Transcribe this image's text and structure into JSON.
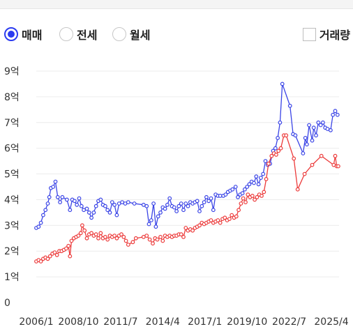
{
  "controls": {
    "options": [
      {
        "label": "매매",
        "selected": true
      },
      {
        "label": "전세",
        "selected": false
      },
      {
        "label": "월세",
        "selected": false
      }
    ],
    "volume_checkbox": {
      "label": "거래량",
      "checked": false
    }
  },
  "colors": {
    "accent": "#2b3bf0",
    "sale_line": "#3a44e6",
    "jeonse_line": "#ec3a3a",
    "grid": "#ececec"
  },
  "chart_data": {
    "type": "line",
    "ylim": [
      0,
      9
    ],
    "xlim": [
      2006.0,
      2025.75
    ],
    "y_ticks": [
      {
        "value": 0,
        "label": "0"
      },
      {
        "value": 1,
        "label": "1억"
      },
      {
        "value": 2,
        "label": "2억"
      },
      {
        "value": 3,
        "label": "3억"
      },
      {
        "value": 4,
        "label": "4억"
      },
      {
        "value": 5,
        "label": "5억"
      },
      {
        "value": 6,
        "label": "6억"
      },
      {
        "value": 7,
        "label": "7억"
      },
      {
        "value": 8,
        "label": "8억"
      },
      {
        "value": 9,
        "label": "9억"
      }
    ],
    "x_ticks": [
      {
        "value": 2006.0,
        "label": "2006/1"
      },
      {
        "value": 2008.75,
        "label": "2008/10"
      },
      {
        "value": 2011.5,
        "label": "2011/7"
      },
      {
        "value": 2014.25,
        "label": "2014/4"
      },
      {
        "value": 2017.0,
        "label": "2017/1"
      },
      {
        "value": 2019.75,
        "label": "2019/10"
      },
      {
        "value": 2022.5,
        "label": "2022/7"
      },
      {
        "value": 2025.25,
        "label": "2025/4"
      }
    ],
    "grid": true,
    "series": [
      {
        "id": "sale",
        "color": "#3a44e6",
        "points": [
          [
            2006.0,
            2.9
          ],
          [
            2006.15,
            2.95
          ],
          [
            2006.3,
            3.1
          ],
          [
            2006.45,
            3.4
          ],
          [
            2006.6,
            3.6
          ],
          [
            2006.75,
            3.85
          ],
          [
            2006.85,
            4.1
          ],
          [
            2006.95,
            4.45
          ],
          [
            2007.1,
            4.5
          ],
          [
            2007.25,
            4.7
          ],
          [
            2007.4,
            4.1
          ],
          [
            2007.55,
            3.9
          ],
          [
            2007.7,
            4.1
          ],
          [
            2008.0,
            4.0
          ],
          [
            2008.2,
            3.6
          ],
          [
            2008.35,
            4.0
          ],
          [
            2008.5,
            3.95
          ],
          [
            2008.65,
            3.8
          ],
          [
            2008.8,
            4.05
          ],
          [
            2008.95,
            3.75
          ],
          [
            2009.1,
            3.6
          ],
          [
            2009.3,
            3.65
          ],
          [
            2009.45,
            3.5
          ],
          [
            2009.6,
            3.3
          ],
          [
            2009.75,
            3.5
          ],
          [
            2009.9,
            3.75
          ],
          [
            2010.05,
            3.95
          ],
          [
            2010.2,
            4.0
          ],
          [
            2010.35,
            3.8
          ],
          [
            2010.5,
            3.75
          ],
          [
            2010.65,
            3.6
          ],
          [
            2010.8,
            3.5
          ],
          [
            2010.95,
            3.9
          ],
          [
            2011.1,
            3.8
          ],
          [
            2011.25,
            3.4
          ],
          [
            2011.4,
            3.85
          ],
          [
            2011.6,
            3.9
          ],
          [
            2011.8,
            3.85
          ],
          [
            2012.0,
            3.9
          ],
          [
            2012.4,
            3.85
          ],
          [
            2013.0,
            3.8
          ],
          [
            2013.2,
            3.75
          ],
          [
            2013.35,
            3.05
          ],
          [
            2013.5,
            3.2
          ],
          [
            2013.65,
            3.85
          ],
          [
            2013.8,
            2.95
          ],
          [
            2013.95,
            3.35
          ],
          [
            2014.1,
            3.5
          ],
          [
            2014.25,
            3.7
          ],
          [
            2014.4,
            3.65
          ],
          [
            2014.55,
            3.8
          ],
          [
            2014.7,
            4.05
          ],
          [
            2014.85,
            3.75
          ],
          [
            2015.0,
            3.7
          ],
          [
            2015.15,
            3.55
          ],
          [
            2015.3,
            3.75
          ],
          [
            2015.45,
            3.85
          ],
          [
            2015.6,
            3.6
          ],
          [
            2015.75,
            3.85
          ],
          [
            2015.9,
            3.75
          ],
          [
            2016.05,
            3.9
          ],
          [
            2016.2,
            3.85
          ],
          [
            2016.35,
            3.9
          ],
          [
            2016.5,
            3.95
          ],
          [
            2016.65,
            3.55
          ],
          [
            2016.8,
            3.75
          ],
          [
            2016.95,
            3.9
          ],
          [
            2017.1,
            4.1
          ],
          [
            2017.25,
            3.95
          ],
          [
            2017.4,
            4.05
          ],
          [
            2017.55,
            3.6
          ],
          [
            2017.7,
            4.2
          ],
          [
            2017.85,
            4.15
          ],
          [
            2018.0,
            4.15
          ],
          [
            2018.2,
            4.15
          ],
          [
            2018.35,
            4.2
          ],
          [
            2018.5,
            4.3
          ],
          [
            2018.65,
            4.35
          ],
          [
            2018.8,
            4.4
          ],
          [
            2019.0,
            4.5
          ],
          [
            2019.15,
            4.1
          ],
          [
            2019.3,
            4.2
          ],
          [
            2019.45,
            4.25
          ],
          [
            2019.6,
            4.4
          ],
          [
            2019.75,
            4.5
          ],
          [
            2019.9,
            4.6
          ],
          [
            2020.05,
            4.7
          ],
          [
            2020.2,
            4.65
          ],
          [
            2020.35,
            4.9
          ],
          [
            2020.5,
            4.6
          ],
          [
            2020.65,
            4.85
          ],
          [
            2020.8,
            5.0
          ],
          [
            2020.95,
            5.5
          ],
          [
            2021.1,
            5.35
          ],
          [
            2021.25,
            5.4
          ],
          [
            2021.45,
            5.9
          ],
          [
            2021.6,
            6.0
          ],
          [
            2021.75,
            6.4
          ],
          [
            2021.9,
            7.0
          ],
          [
            2022.05,
            8.5
          ],
          [
            2022.55,
            7.65
          ],
          [
            2022.75,
            6.55
          ],
          [
            2022.9,
            6.5
          ],
          [
            2023.4,
            5.8
          ],
          [
            2023.55,
            6.4
          ],
          [
            2023.65,
            6.15
          ],
          [
            2023.8,
            6.9
          ],
          [
            2024.0,
            6.3
          ],
          [
            2024.1,
            6.8
          ],
          [
            2024.25,
            6.5
          ],
          [
            2024.4,
            7.0
          ],
          [
            2024.55,
            6.9
          ],
          [
            2024.7,
            7.0
          ],
          [
            2024.85,
            6.8
          ],
          [
            2025.0,
            6.75
          ],
          [
            2025.2,
            6.7
          ],
          [
            2025.35,
            7.3
          ],
          [
            2025.5,
            7.45
          ],
          [
            2025.65,
            7.3
          ]
        ]
      },
      {
        "id": "jeonse",
        "color": "#ec3a3a",
        "points": [
          [
            2006.0,
            1.6
          ],
          [
            2006.15,
            1.65
          ],
          [
            2006.3,
            1.6
          ],
          [
            2006.45,
            1.7
          ],
          [
            2006.6,
            1.75
          ],
          [
            2006.75,
            1.7
          ],
          [
            2006.9,
            1.8
          ],
          [
            2007.05,
            1.9
          ],
          [
            2007.2,
            1.95
          ],
          [
            2007.35,
            1.85
          ],
          [
            2007.5,
            2.0
          ],
          [
            2007.65,
            2.0
          ],
          [
            2007.8,
            2.05
          ],
          [
            2007.95,
            2.1
          ],
          [
            2008.1,
            2.2
          ],
          [
            2008.2,
            1.8
          ],
          [
            2008.3,
            2.4
          ],
          [
            2008.45,
            2.5
          ],
          [
            2008.6,
            2.55
          ],
          [
            2008.75,
            2.6
          ],
          [
            2008.9,
            2.7
          ],
          [
            2009.0,
            3.0
          ],
          [
            2009.15,
            2.8
          ],
          [
            2009.3,
            2.5
          ],
          [
            2009.45,
            2.65
          ],
          [
            2009.6,
            2.7
          ],
          [
            2009.75,
            2.6
          ],
          [
            2009.9,
            2.65
          ],
          [
            2010.05,
            2.5
          ],
          [
            2010.2,
            2.7
          ],
          [
            2010.35,
            2.5
          ],
          [
            2010.5,
            2.55
          ],
          [
            2010.65,
            2.45
          ],
          [
            2010.8,
            2.6
          ],
          [
            2010.95,
            2.55
          ],
          [
            2011.1,
            2.6
          ],
          [
            2011.25,
            2.5
          ],
          [
            2011.4,
            2.6
          ],
          [
            2011.55,
            2.65
          ],
          [
            2011.7,
            2.55
          ],
          [
            2011.85,
            2.4
          ],
          [
            2012.0,
            2.25
          ],
          [
            2012.3,
            2.35
          ],
          [
            2012.5,
            2.5
          ],
          [
            2013.0,
            2.55
          ],
          [
            2013.2,
            2.6
          ],
          [
            2013.4,
            2.45
          ],
          [
            2013.6,
            2.3
          ],
          [
            2013.75,
            2.5
          ],
          [
            2013.9,
            2.45
          ],
          [
            2014.1,
            2.55
          ],
          [
            2014.25,
            2.4
          ],
          [
            2014.4,
            2.6
          ],
          [
            2014.55,
            2.55
          ],
          [
            2014.7,
            2.6
          ],
          [
            2014.85,
            2.55
          ],
          [
            2015.0,
            2.6
          ],
          [
            2015.15,
            2.6
          ],
          [
            2015.3,
            2.65
          ],
          [
            2015.45,
            2.65
          ],
          [
            2015.6,
            2.55
          ],
          [
            2015.75,
            2.9
          ],
          [
            2015.9,
            2.8
          ],
          [
            2016.05,
            2.85
          ],
          [
            2016.2,
            2.8
          ],
          [
            2016.35,
            2.9
          ],
          [
            2016.5,
            2.95
          ],
          [
            2016.65,
            3.0
          ],
          [
            2016.8,
            3.1
          ],
          [
            2016.95,
            3.05
          ],
          [
            2017.1,
            3.1
          ],
          [
            2017.25,
            3.15
          ],
          [
            2017.4,
            3.2
          ],
          [
            2017.55,
            3.1
          ],
          [
            2017.7,
            3.15
          ],
          [
            2017.85,
            3.2
          ],
          [
            2018.0,
            3.1
          ],
          [
            2018.15,
            3.25
          ],
          [
            2018.3,
            3.3
          ],
          [
            2018.45,
            3.2
          ],
          [
            2018.6,
            3.25
          ],
          [
            2018.75,
            3.4
          ],
          [
            2018.9,
            3.3
          ],
          [
            2019.05,
            3.35
          ],
          [
            2019.2,
            3.6
          ],
          [
            2019.35,
            3.85
          ],
          [
            2019.5,
            4.05
          ],
          [
            2019.65,
            3.9
          ],
          [
            2019.8,
            4.2
          ],
          [
            2019.95,
            4.1
          ],
          [
            2020.1,
            4.15
          ],
          [
            2020.25,
            4.0
          ],
          [
            2020.4,
            4.1
          ],
          [
            2020.55,
            4.2
          ],
          [
            2020.7,
            4.15
          ],
          [
            2020.85,
            4.3
          ],
          [
            2021.0,
            4.8
          ],
          [
            2021.15,
            5.4
          ],
          [
            2021.35,
            5.7
          ],
          [
            2021.5,
            5.8
          ],
          [
            2021.65,
            5.75
          ],
          [
            2021.8,
            5.9
          ],
          [
            2021.95,
            6.0
          ],
          [
            2022.15,
            6.5
          ],
          [
            2022.3,
            6.5
          ],
          [
            2022.8,
            5.6
          ],
          [
            2023.05,
            4.4
          ],
          [
            2023.5,
            5.0
          ],
          [
            2024.0,
            5.35
          ],
          [
            2024.6,
            5.7
          ],
          [
            2025.4,
            5.35
          ],
          [
            2025.5,
            5.7
          ],
          [
            2025.6,
            5.3
          ],
          [
            2025.7,
            5.3
          ]
        ]
      }
    ]
  }
}
